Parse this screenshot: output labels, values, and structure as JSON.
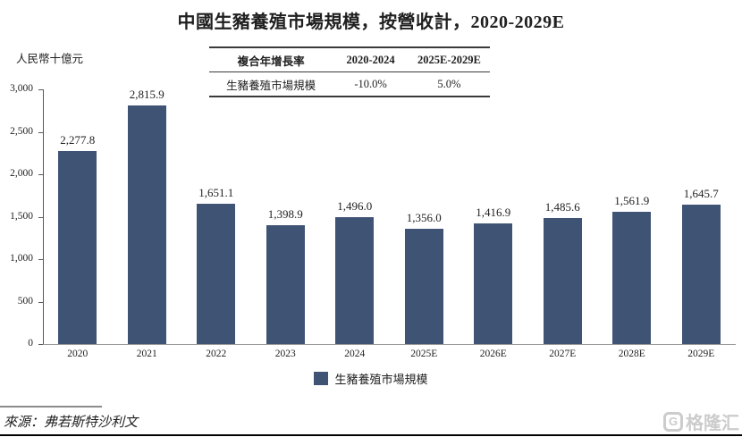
{
  "title": "中國生豬養殖市場規模，按營收計，2020-2029E",
  "unit_label": "人民幣十億元",
  "cagr_table": {
    "header": [
      "複合年增長率",
      "2020-2024",
      "2025E-2029E"
    ],
    "row": [
      "生豬養殖市場規模",
      "-10.0%",
      "5.0%"
    ]
  },
  "chart_data": {
    "type": "bar",
    "categories": [
      "2020",
      "2021",
      "2022",
      "2023",
      "2024",
      "2025E",
      "2026E",
      "2027E",
      "2028E",
      "2029E"
    ],
    "values": [
      2277.8,
      2815.9,
      1651.1,
      1398.9,
      1496.0,
      1356.0,
      1416.9,
      1485.6,
      1561.9,
      1645.7
    ],
    "value_labels": [
      "2,277.8",
      "2,815.9",
      "1,651.1",
      "1,398.9",
      "1,496.0",
      "1,356.0",
      "1,416.9",
      "1,485.6",
      "1,561.9",
      "1,645.7"
    ],
    "title": "中國生豬養殖市場規模，按營收計，2020-2029E",
    "xlabel": "",
    "ylabel": "人民幣十億元",
    "ylim": [
      0,
      3000
    ],
    "ytick_values": [
      0,
      500,
      1000,
      1500,
      2000,
      2500,
      3000
    ],
    "ytick_labels": [
      "0",
      "500",
      "1,000",
      "1,500",
      "2,000",
      "2,500",
      "3,000"
    ],
    "grid": false,
    "legend_position": "bottom",
    "legend": [
      "生豬養殖市場規模"
    ],
    "bar_color": "#3f5474"
  },
  "legend_label": "生豬養殖市場規模",
  "source": "來源：弗若斯特沙利文",
  "watermark": {
    "icon_letter": "G",
    "text": "格隆汇"
  },
  "colors": {
    "bar": "#3f5474",
    "y_axis": "#595959",
    "x_axis": "#9a9a9a",
    "watermark": "#cccccc"
  }
}
